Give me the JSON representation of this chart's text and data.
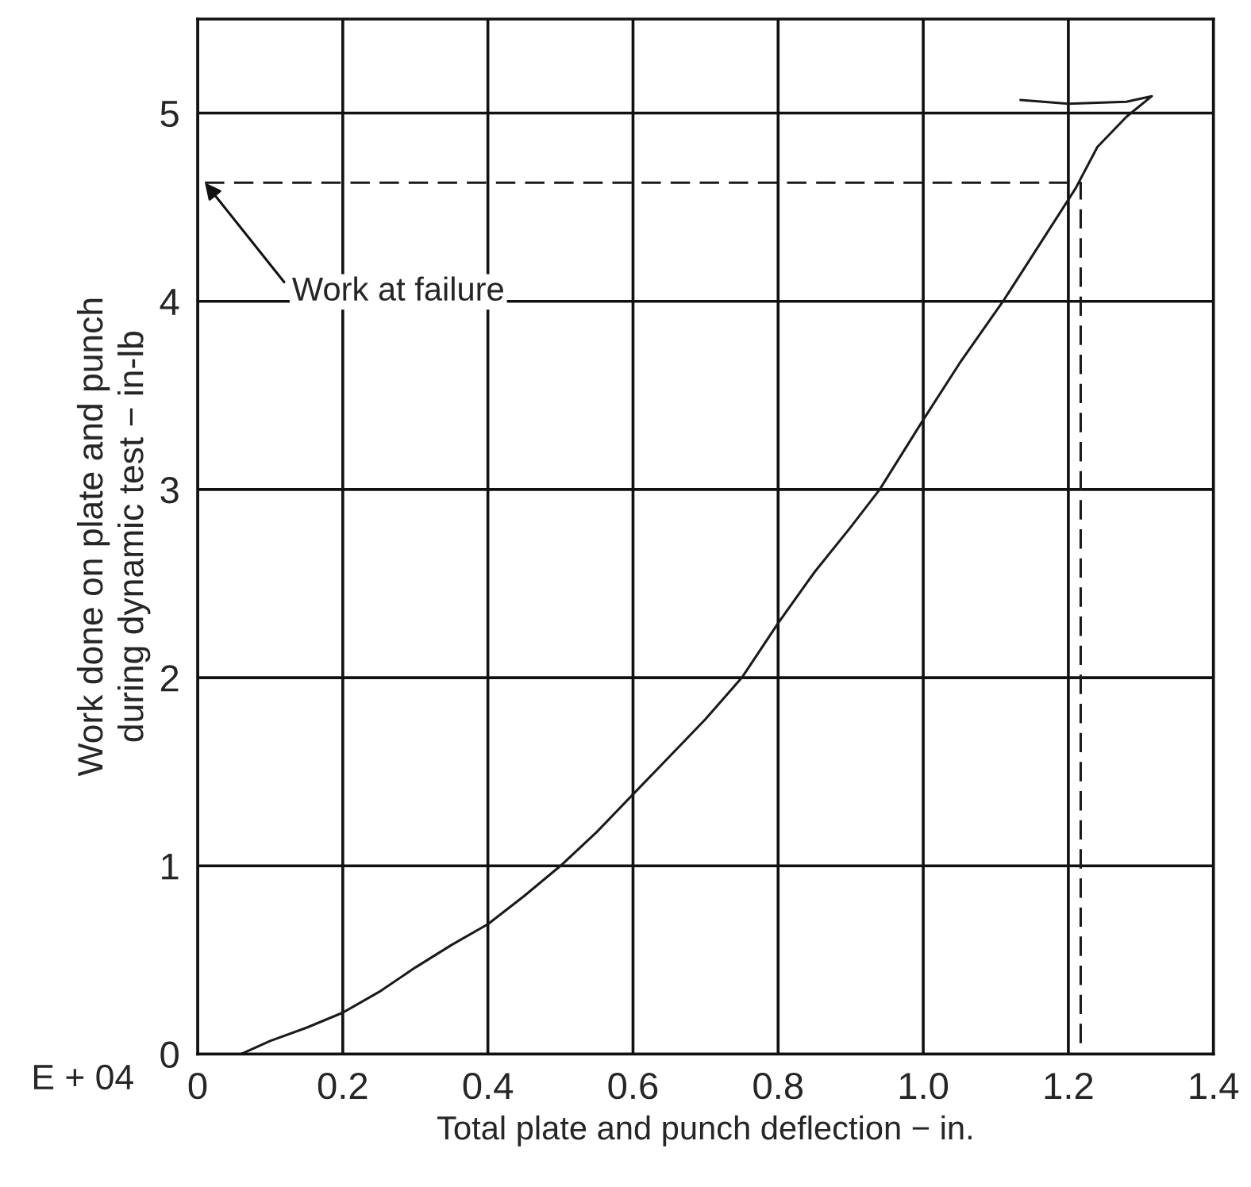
{
  "chart_data": {
    "type": "line",
    "xlabel": "Total plate and punch deflection − in.",
    "ylabel": "Work done on plate and punch\nduring dynamic test − in-lb",
    "series": [
      {
        "color": "#1a1a1a",
        "line_style": "solid",
        "x": [
          0.06,
          0.1,
          0.15,
          0.2,
          0.25,
          0.3,
          0.35,
          0.4,
          0.45,
          0.5,
          0.55,
          0.6,
          0.65,
          0.7,
          0.75,
          0.8,
          0.85,
          0.9,
          0.94,
          1.0,
          1.05,
          1.11,
          1.16,
          1.21,
          1.24,
          1.28,
          1.315,
          1.28,
          1.2,
          1.134
        ],
        "values": [
          0,
          0.07,
          0.14,
          0.22,
          0.33,
          0.46,
          0.58,
          0.69,
          0.84,
          1.0,
          1.18,
          1.38,
          1.58,
          1.78,
          2.0,
          2.29,
          2.56,
          2.8,
          3.0,
          3.37,
          3.67,
          4.0,
          4.3,
          4.6,
          4.82,
          4.98,
          5.09,
          5.06,
          5.05,
          5.07
        ]
      },
      {
        "color": "#1a1a1a",
        "line_style": "dashed",
        "x": [
          0.01,
          1.217,
          1.217
        ],
        "values": [
          4.63,
          4.63,
          0
        ]
      }
    ],
    "xlim": [
      0,
      1.4
    ],
    "ylim": [
      0,
      5.5
    ],
    "xticks": [
      0,
      0.2,
      0.4,
      0.6,
      0.8,
      {
        "value": 1,
        "label": "1.0"
      },
      1.2,
      1.4
    ],
    "yticks": [
      0,
      1,
      2,
      3,
      4,
      5
    ],
    "grid": true,
    "annotations": [
      {
        "text": "Work at failure",
        "x": 0.01,
        "y": 4.63
      },
      "E + 04"
    ]
  }
}
